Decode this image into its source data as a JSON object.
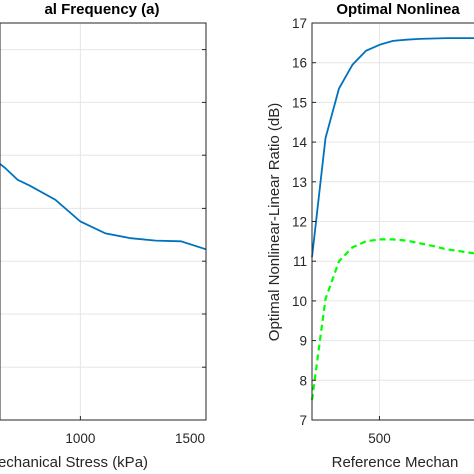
{
  "chart_data": [
    {
      "type": "line",
      "title": "al Frequency (a)",
      "xlabel": "echanical Stress (kPa)",
      "ylabel": "",
      "xlim": [
        680,
        1500
      ],
      "x_ticks": [
        1000,
        1500
      ],
      "grid": true,
      "series": [
        {
          "color": "#0072BD",
          "style": "solid",
          "x": [
            680,
            700,
            750,
            800,
            900,
            1000,
            1100,
            1200,
            1300,
            1400,
            1500
          ],
          "y": [
            0.645,
            0.635,
            0.605,
            0.59,
            0.555,
            0.5,
            0.47,
            0.458,
            0.452,
            0.45,
            0.43
          ]
        }
      ]
    },
    {
      "type": "line",
      "title": "Optimal Nonlinea",
      "xlabel": "Reference Mechan",
      "ylabel": "Optimal Nonlinear-Linear Ratio (dB)",
      "xlim": [
        250,
        880
      ],
      "ylim": [
        7,
        17
      ],
      "x_ticks": [
        500
      ],
      "y_ticks": [
        7,
        8,
        9,
        10,
        11,
        12,
        13,
        14,
        15,
        16,
        17
      ],
      "grid": true,
      "series": [
        {
          "color": "#0072BD",
          "style": "solid",
          "x": [
            250,
            300,
            350,
            400,
            450,
            500,
            550,
            600,
            650,
            700,
            750,
            800,
            850,
            880
          ],
          "y": [
            11.1,
            14.1,
            15.35,
            15.95,
            16.3,
            16.45,
            16.55,
            16.58,
            16.6,
            16.61,
            16.62,
            16.62,
            16.62,
            16.62
          ]
        },
        {
          "color": "#00FF00",
          "style": "dashed",
          "x": [
            250,
            300,
            350,
            400,
            450,
            500,
            550,
            600,
            650,
            700,
            750,
            800,
            850,
            880
          ],
          "y": [
            7.5,
            10.05,
            11.0,
            11.35,
            11.5,
            11.55,
            11.55,
            11.52,
            11.45,
            11.38,
            11.3,
            11.25,
            11.2,
            11.2
          ]
        }
      ]
    }
  ]
}
